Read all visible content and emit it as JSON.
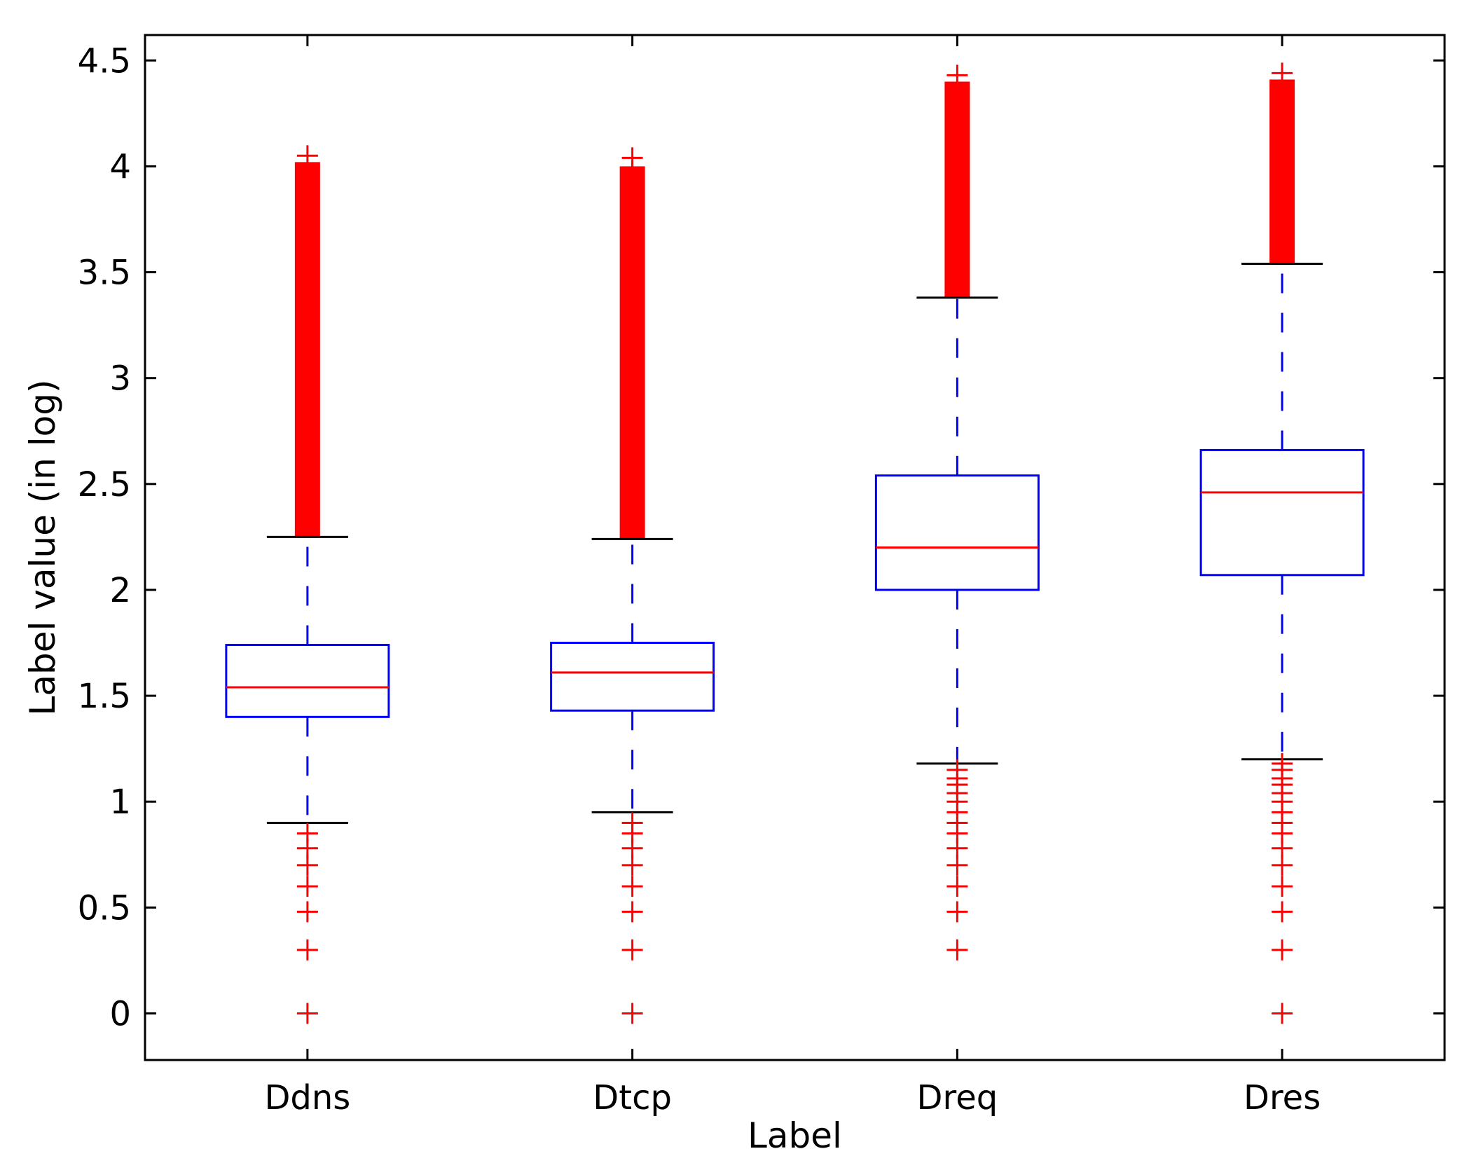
{
  "chart_data": {
    "type": "box",
    "title": "",
    "xlabel": "Label",
    "ylabel": "Label value (in log)",
    "ylim": [
      -0.22,
      4.62
    ],
    "yticks": [
      0,
      0.5,
      1,
      1.5,
      2,
      2.5,
      3,
      3.5,
      4,
      4.5
    ],
    "ytick_labels": [
      "0",
      "0.5",
      "1",
      "1.5",
      "2",
      "2.5",
      "3",
      "3.5",
      "4",
      "4.5"
    ],
    "categories": [
      "Ddns",
      "Dtcp",
      "Dreq",
      "Dres"
    ],
    "colors": {
      "box": "#0000ff",
      "median": "#ff0000",
      "whisker": "#0000ff",
      "cap": "#000000",
      "outlier": "#ff0000",
      "axis": "#000000"
    },
    "series": [
      {
        "name": "Ddns",
        "q1": 1.4,
        "median": 1.54,
        "q3": 1.74,
        "whisker_low": 0.9,
        "whisker_high": 2.25,
        "outliers_low": [
          0.0,
          0.3,
          0.48,
          0.6,
          0.7,
          0.78,
          0.85
        ],
        "outliers_high_band": [
          2.25,
          4.02
        ],
        "outliers_high_extra": [
          4.05
        ]
      },
      {
        "name": "Dtcp",
        "q1": 1.43,
        "median": 1.61,
        "q3": 1.75,
        "whisker_low": 0.95,
        "whisker_high": 2.24,
        "outliers_low": [
          0.0,
          0.3,
          0.48,
          0.6,
          0.7,
          0.78,
          0.85,
          0.9
        ],
        "outliers_high_band": [
          2.24,
          4.0
        ],
        "outliers_high_extra": [
          3.98,
          4.04
        ]
      },
      {
        "name": "Dreq",
        "q1": 2.0,
        "median": 2.2,
        "q3": 2.54,
        "whisker_low": 1.18,
        "whisker_high": 3.38,
        "outliers_low": [
          0.3,
          0.48,
          0.6,
          0.7,
          0.78,
          0.85,
          0.9,
          0.95,
          1.0,
          1.04,
          1.08,
          1.11,
          1.15
        ],
        "outliers_high_band": [
          3.38,
          4.4
        ],
        "outliers_high_extra": [
          4.23,
          4.43
        ]
      },
      {
        "name": "Dres",
        "q1": 2.07,
        "median": 2.46,
        "q3": 2.66,
        "whisker_low": 1.2,
        "whisker_high": 3.54,
        "outliers_low": [
          0.0,
          0.3,
          0.48,
          0.6,
          0.7,
          0.78,
          0.85,
          0.9,
          0.95,
          1.0,
          1.04,
          1.08,
          1.11,
          1.15,
          1.18
        ],
        "outliers_high_band": [
          3.54,
          4.41
        ],
        "outliers_high_extra": [
          4.44
        ]
      }
    ]
  }
}
